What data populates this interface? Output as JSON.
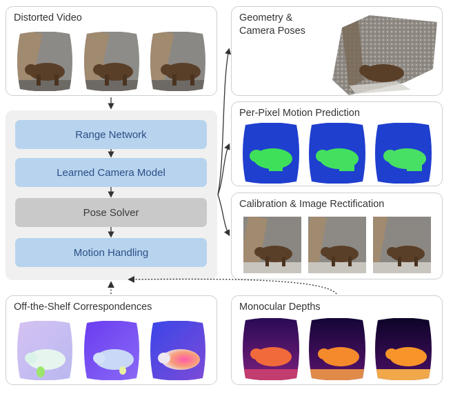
{
  "panels": {
    "distorted_video": {
      "title": "Distorted Video"
    },
    "geometry": {
      "title": "Geometry &\nCamera Poses"
    },
    "motion": {
      "title": "Per-Pixel Motion Prediction"
    },
    "calibration": {
      "title": "Calibration  &  Image Rectification"
    },
    "correspondences": {
      "title": "Off-the-Shelf Correspondences"
    },
    "depths": {
      "title": "Monocular Depths"
    }
  },
  "modules": [
    {
      "label": "Range Network",
      "style": "blue"
    },
    {
      "label": "Learned Camera Model",
      "style": "blue"
    },
    {
      "label": "Pose Solver",
      "style": "grey"
    },
    {
      "label": "Motion Handling",
      "style": "blue"
    }
  ],
  "colors": {
    "module_blue": "#b7d3ee",
    "module_blue_text": "#2c4f86",
    "module_grey": "#c9c9c9",
    "core_bg": "#f0f0f0",
    "arrow": "#333333"
  }
}
